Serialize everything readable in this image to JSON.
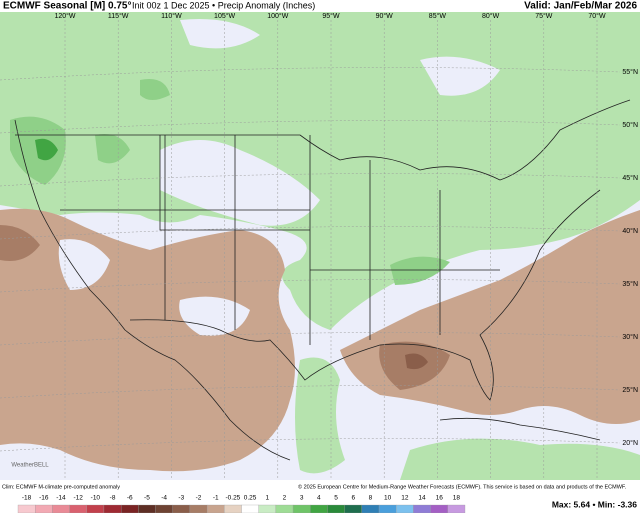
{
  "header": {
    "title": "ECMWF Seasonal [M] 0.75°",
    "subtitle": "Init 00z 1 Dec 2025 • Precip Anomaly (Inches)",
    "valid": "Valid: Jan/Feb/Mar 2026"
  },
  "map": {
    "longitude_labels": [
      "120°W",
      "115°W",
      "110°W",
      "105°W",
      "100°W",
      "95°W",
      "90°W",
      "85°W",
      "80°W",
      "75°W",
      "70°W"
    ],
    "latitude_labels": [
      "55°N",
      "50°N",
      "45°N",
      "40°N",
      "35°N",
      "30°N",
      "25°N",
      "20°N"
    ],
    "watermark": "WeatherBELL"
  },
  "footer": {
    "climatology": "Clim: ECMWF M-climate pre-computed anomaly",
    "credit": "© 2025 European Centre for Medium-Range Weather Forecasts (ECMWF). This service is based on data and products of the ECMWF.",
    "max_min": "Max: 5.64 • Min: -3.36"
  },
  "legend": [
    {
      "label": "-18",
      "color": "#f7c9cf"
    },
    {
      "label": "-16",
      "color": "#f2a9b3"
    },
    {
      "label": "-14",
      "color": "#e98a96"
    },
    {
      "label": "-12",
      "color": "#d9616f"
    },
    {
      "label": "-10",
      "color": "#c2404c"
    },
    {
      "label": "-8",
      "color": "#9e2a33"
    },
    {
      "label": "-6",
      "color": "#7a2424"
    },
    {
      "label": "-5",
      "color": "#5e2f25"
    },
    {
      "label": "-4",
      "color": "#6e4333"
    },
    {
      "label": "-3",
      "color": "#8a5e4a"
    },
    {
      "label": "-2",
      "color": "#a77d66"
    },
    {
      "label": "-1",
      "color": "#c8a48e"
    },
    {
      "label": "-0.25",
      "color": "#e6d2c2"
    },
    {
      "label": "0.25",
      "color": "#ffffff"
    },
    {
      "label": "1",
      "color": "#c9ecc4"
    },
    {
      "label": "2",
      "color": "#9edc95"
    },
    {
      "label": "3",
      "color": "#6fc468"
    },
    {
      "label": "4",
      "color": "#41a543"
    },
    {
      "label": "5",
      "color": "#2a8a3a"
    },
    {
      "label": "6",
      "color": "#1f6e4e"
    },
    {
      "label": "8",
      "color": "#2f7fb5"
    },
    {
      "label": "10",
      "color": "#4a9fdc"
    },
    {
      "label": "12",
      "color": "#7cc1ee"
    },
    {
      "label": "14",
      "color": "#8f7cd6"
    },
    {
      "label": "16",
      "color": "#a45fc4"
    },
    {
      "label": "18",
      "color": "#c79ae0"
    }
  ]
}
